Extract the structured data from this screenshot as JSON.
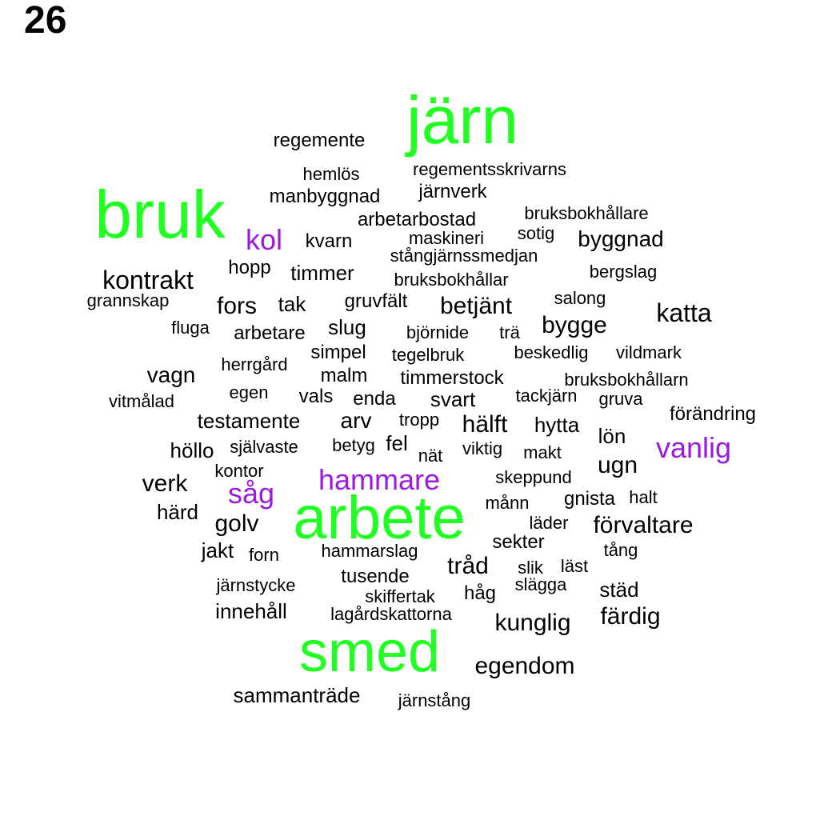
{
  "page_number": "26",
  "colors": {
    "green": "#22ff22",
    "purple": "#9a1ae0",
    "black": "#000000"
  },
  "words": [
    {
      "text": "järn",
      "color": "green"
    },
    {
      "text": "bruk",
      "color": "green"
    },
    {
      "text": "arbete",
      "color": "green"
    },
    {
      "text": "smed",
      "color": "green"
    },
    {
      "text": "kol",
      "color": "purple"
    },
    {
      "text": "hammare",
      "color": "purple"
    },
    {
      "text": "såg",
      "color": "purple"
    },
    {
      "text": "vanlig",
      "color": "purple"
    },
    {
      "text": "regemente",
      "color": "black"
    },
    {
      "text": "hemlös",
      "color": "black"
    },
    {
      "text": "regementsskrivarns",
      "color": "black"
    },
    {
      "text": "manbyggnad",
      "color": "black"
    },
    {
      "text": "järnverk",
      "color": "black"
    },
    {
      "text": "arbetarbostad",
      "color": "black"
    },
    {
      "text": "bruksbokhållare",
      "color": "black"
    },
    {
      "text": "kvarn",
      "color": "black"
    },
    {
      "text": "maskineri",
      "color": "black"
    },
    {
      "text": "sotig",
      "color": "black"
    },
    {
      "text": "byggnad",
      "color": "black"
    },
    {
      "text": "stångjärnssmedjan",
      "color": "black"
    },
    {
      "text": "hopp",
      "color": "black"
    },
    {
      "text": "timmer",
      "color": "black"
    },
    {
      "text": "bruksbokhållar",
      "color": "black"
    },
    {
      "text": "bergslag",
      "color": "black"
    },
    {
      "text": "kontrakt",
      "color": "black"
    },
    {
      "text": "grannskap",
      "color": "black"
    },
    {
      "text": "fors",
      "color": "black"
    },
    {
      "text": "tak",
      "color": "black"
    },
    {
      "text": "gruvfält",
      "color": "black"
    },
    {
      "text": "betjänt",
      "color": "black"
    },
    {
      "text": "salong",
      "color": "black"
    },
    {
      "text": "katta",
      "color": "black"
    },
    {
      "text": "fluga",
      "color": "black"
    },
    {
      "text": "arbetare",
      "color": "black"
    },
    {
      "text": "slug",
      "color": "black"
    },
    {
      "text": "björnide",
      "color": "black"
    },
    {
      "text": "trä",
      "color": "black"
    },
    {
      "text": "bygge",
      "color": "black"
    },
    {
      "text": "simpel",
      "color": "black"
    },
    {
      "text": "tegelbruk",
      "color": "black"
    },
    {
      "text": "beskedlig",
      "color": "black"
    },
    {
      "text": "vildmark",
      "color": "black"
    },
    {
      "text": "vagn",
      "color": "black"
    },
    {
      "text": "herrgård",
      "color": "black"
    },
    {
      "text": "malm",
      "color": "black"
    },
    {
      "text": "timmerstock",
      "color": "black"
    },
    {
      "text": "bruksbokhållarn",
      "color": "black"
    },
    {
      "text": "vitmålad",
      "color": "black"
    },
    {
      "text": "egen",
      "color": "black"
    },
    {
      "text": "vals",
      "color": "black"
    },
    {
      "text": "enda",
      "color": "black"
    },
    {
      "text": "svart",
      "color": "black"
    },
    {
      "text": "tackjärn",
      "color": "black"
    },
    {
      "text": "gruva",
      "color": "black"
    },
    {
      "text": "förändring",
      "color": "black"
    },
    {
      "text": "testamente",
      "color": "black"
    },
    {
      "text": "arv",
      "color": "black"
    },
    {
      "text": "tropp",
      "color": "black"
    },
    {
      "text": "hälft",
      "color": "black"
    },
    {
      "text": "hytta",
      "color": "black"
    },
    {
      "text": "lön",
      "color": "black"
    },
    {
      "text": "höllo",
      "color": "black"
    },
    {
      "text": "självaste",
      "color": "black"
    },
    {
      "text": "betyg",
      "color": "black"
    },
    {
      "text": "fel",
      "color": "black"
    },
    {
      "text": "nät",
      "color": "black"
    },
    {
      "text": "viktig",
      "color": "black"
    },
    {
      "text": "makt",
      "color": "black"
    },
    {
      "text": "ugn",
      "color": "black"
    },
    {
      "text": "kontor",
      "color": "black"
    },
    {
      "text": "verk",
      "color": "black"
    },
    {
      "text": "skeppund",
      "color": "black"
    },
    {
      "text": "månn",
      "color": "black"
    },
    {
      "text": "gnista",
      "color": "black"
    },
    {
      "text": "halt",
      "color": "black"
    },
    {
      "text": "härd",
      "color": "black"
    },
    {
      "text": "golv",
      "color": "black"
    },
    {
      "text": "läder",
      "color": "black"
    },
    {
      "text": "förvaltare",
      "color": "black"
    },
    {
      "text": "jakt",
      "color": "black"
    },
    {
      "text": "forn",
      "color": "black"
    },
    {
      "text": "hammarslag",
      "color": "black"
    },
    {
      "text": "sekter",
      "color": "black"
    },
    {
      "text": "tång",
      "color": "black"
    },
    {
      "text": "tråd",
      "color": "black"
    },
    {
      "text": "slik",
      "color": "black"
    },
    {
      "text": "läst",
      "color": "black"
    },
    {
      "text": "tusende",
      "color": "black"
    },
    {
      "text": "järnstycke",
      "color": "black"
    },
    {
      "text": "slägga",
      "color": "black"
    },
    {
      "text": "städ",
      "color": "black"
    },
    {
      "text": "skiffertak",
      "color": "black"
    },
    {
      "text": "håg",
      "color": "black"
    },
    {
      "text": "innehåll",
      "color": "black"
    },
    {
      "text": "lagårdskattorna",
      "color": "black"
    },
    {
      "text": "kunglig",
      "color": "black"
    },
    {
      "text": "färdig",
      "color": "black"
    },
    {
      "text": "egendom",
      "color": "black"
    },
    {
      "text": "sammanträde",
      "color": "black"
    },
    {
      "text": "järnstång",
      "color": "black"
    }
  ]
}
